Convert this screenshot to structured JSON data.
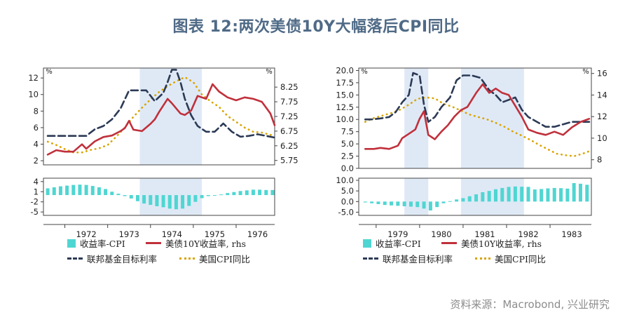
{
  "title": "图表 12:两次美债10Y大幅落后CPI同比",
  "source": "资料来源：Macrobond, 兴业研究",
  "colors": {
    "spread": "#4fd6d2",
    "yield": "#c0303b",
    "fedfunds": "#2c3a55",
    "cpi": "#d9a400",
    "shade": "#dfe9f6",
    "axis": "#444444"
  },
  "chart_data": [
    {
      "type": "line",
      "panel": "left",
      "x_ticks": [
        "1972",
        "1973",
        "1974",
        "1975",
        "1976"
      ],
      "x_range": [
        1971.5,
        1976.9
      ],
      "shaded_periods": [
        [
          1973.75,
          1975.2
        ]
      ],
      "left_axis": {
        "unit": "%",
        "ticks": [
          2,
          4,
          6,
          8,
          10,
          12
        ],
        "ylim": [
          1.5,
          13.2
        ]
      },
      "right_axis": {
        "unit": "%",
        "ticks": [
          "5.75",
          "6.25",
          "6.75",
          "7.25",
          "7.75",
          "8.25"
        ],
        "ylim": [
          5.6,
          8.9
        ]
      },
      "bottom_axis": {
        "ticks": [
          "4",
          "1",
          "-2",
          "-5"
        ],
        "ylim": [
          -6,
          5
        ]
      },
      "series": [
        {
          "name": "联邦基金目标利率",
          "axis": "left",
          "style": "dashed",
          "x": [
            1971.6,
            1971.9,
            1972.1,
            1972.3,
            1972.5,
            1972.7,
            1972.9,
            1973.1,
            1973.3,
            1973.5,
            1973.7,
            1973.9,
            1974.1,
            1974.3,
            1974.4,
            1974.5,
            1974.6,
            1974.7,
            1974.8,
            1974.95,
            1975.1,
            1975.3,
            1975.5,
            1975.7,
            1975.9,
            1976.1,
            1976.3,
            1976.5,
            1976.7,
            1976.9
          ],
          "y": [
            5.0,
            5.0,
            5.0,
            5.0,
            5.0,
            5.8,
            6.2,
            7.0,
            8.3,
            10.5,
            10.5,
            10.5,
            9.2,
            10.2,
            11.5,
            13.0,
            13.0,
            11.5,
            9.5,
            7.5,
            6.2,
            5.5,
            5.5,
            6.5,
            5.5,
            4.9,
            5.0,
            5.2,
            5.0,
            4.8
          ]
        },
        {
          "name": "美债10Y收益率, rhs",
          "axis": "right",
          "x": [
            1971.6,
            1971.8,
            1972.0,
            1972.2,
            1972.4,
            1972.5,
            1972.7,
            1972.9,
            1973.1,
            1973.3,
            1973.4,
            1973.5,
            1973.6,
            1973.8,
            1974.0,
            1974.1,
            1974.2,
            1974.4,
            1974.5,
            1974.7,
            1974.8,
            1974.95,
            1975.1,
            1975.3,
            1975.45,
            1975.6,
            1975.8,
            1976.0,
            1976.2,
            1976.4,
            1976.6,
            1976.8,
            1976.9
          ],
          "y": [
            5.95,
            6.1,
            6.05,
            6.05,
            6.3,
            6.15,
            6.4,
            6.55,
            6.6,
            6.75,
            6.85,
            7.1,
            6.8,
            6.75,
            7.0,
            7.15,
            7.4,
            7.85,
            7.7,
            7.35,
            7.3,
            7.45,
            7.95,
            7.85,
            8.35,
            8.1,
            7.9,
            7.8,
            7.9,
            7.85,
            7.75,
            7.35,
            6.95
          ]
        },
        {
          "name": "美国CPI同比",
          "axis": "left",
          "style": "dotted",
          "x": [
            1971.6,
            1971.8,
            1972.0,
            1972.2,
            1972.4,
            1972.6,
            1972.8,
            1973.0,
            1973.2,
            1973.4,
            1973.6,
            1973.8,
            1974.0,
            1974.2,
            1974.4,
            1974.6,
            1974.8,
            1975.0,
            1975.2,
            1975.4,
            1975.6,
            1975.8,
            1976.0,
            1976.2,
            1976.4,
            1976.6,
            1976.9
          ],
          "y": [
            4.3,
            3.9,
            3.4,
            3.0,
            3.0,
            3.3,
            3.5,
            3.9,
            4.9,
            6.0,
            7.3,
            8.4,
            9.4,
            10.3,
            11.0,
            11.6,
            12.1,
            11.5,
            10.0,
            9.2,
            8.5,
            7.4,
            6.7,
            6.0,
            5.5,
            5.4,
            5.0
          ]
        },
        {
          "name": "收益率-CPI",
          "axis": "bottom",
          "type": "bar",
          "x": [
            1971.6,
            1971.75,
            1971.9,
            1972.05,
            1972.2,
            1972.35,
            1972.5,
            1972.65,
            1972.8,
            1972.95,
            1973.1,
            1973.25,
            1973.4,
            1973.55,
            1973.7,
            1973.85,
            1974.0,
            1974.15,
            1974.3,
            1974.45,
            1974.6,
            1974.75,
            1974.9,
            1975.05,
            1975.2,
            1975.35,
            1975.5,
            1975.65,
            1975.8,
            1975.95,
            1976.1,
            1976.25,
            1976.4,
            1976.55,
            1976.7,
            1976.85
          ],
          "y": [
            2.0,
            2.3,
            2.6,
            2.8,
            3.0,
            3.1,
            3.0,
            2.7,
            2.3,
            1.8,
            1.0,
            0.4,
            -0.3,
            -1.0,
            -1.8,
            -2.5,
            -2.9,
            -3.3,
            -3.6,
            -4.0,
            -4.2,
            -4.0,
            -3.2,
            -2.0,
            -0.9,
            -0.3,
            0.0,
            0.2,
            0.6,
            0.9,
            1.2,
            1.4,
            1.6,
            1.6,
            1.5,
            1.5
          ]
        }
      ]
    },
    {
      "type": "line",
      "panel": "right",
      "x_ticks": [
        "1979",
        "1980",
        "1981",
        "1982",
        "1983"
      ],
      "x_range": [
        1978.6,
        1983.95
      ],
      "shaded_periods": [
        [
          1979.65,
          1980.2
        ],
        [
          1980.95,
          1982.4
        ]
      ],
      "left_axis": {
        "unit": "%",
        "ticks": [
          "0.0",
          "2.5",
          "5.0",
          "7.5",
          "10.0",
          "12.5",
          "15.0",
          "17.5",
          "20.0"
        ],
        "ylim": [
          0,
          20.5
        ]
      },
      "right_axis": {
        "unit": "%",
        "ticks": [
          8,
          10,
          12,
          14,
          16
        ],
        "ylim": [
          7.2,
          16.5
        ]
      },
      "bottom_axis": {
        "ticks": [
          "10.0",
          "5.0",
          "0.0",
          "-5.0"
        ],
        "ylim": [
          -6.5,
          11
        ]
      },
      "series": [
        {
          "name": "联邦基金目标利率",
          "axis": "left",
          "style": "dashed",
          "x": [
            1978.75,
            1978.9,
            1979.1,
            1979.3,
            1979.45,
            1979.6,
            1979.75,
            1979.85,
            1980.0,
            1980.1,
            1980.2,
            1980.35,
            1980.5,
            1980.7,
            1980.85,
            1981.0,
            1981.2,
            1981.4,
            1981.6,
            1981.75,
            1981.9,
            1982.05,
            1982.2,
            1982.35,
            1982.5,
            1982.7,
            1982.9,
            1983.1,
            1983.3,
            1983.5,
            1983.7,
            1983.9
          ],
          "y": [
            10.0,
            10.0,
            10.2,
            10.5,
            11.5,
            13.5,
            15.0,
            19.5,
            19.0,
            13.0,
            9.5,
            10.5,
            12.5,
            14.5,
            18.0,
            19.0,
            19.0,
            18.5,
            16.0,
            15.0,
            13.5,
            14.0,
            14.5,
            12.0,
            10.5,
            9.5,
            8.5,
            8.5,
            9.0,
            9.5,
            9.5,
            9.5
          ]
        },
        {
          "name": "美债10Y收益率, rhs",
          "axis": "right",
          "x": [
            1978.75,
            1978.95,
            1979.1,
            1979.3,
            1979.5,
            1979.6,
            1979.75,
            1979.9,
            1980.0,
            1980.1,
            1980.2,
            1980.35,
            1980.5,
            1980.65,
            1980.8,
            1980.95,
            1981.1,
            1981.3,
            1981.45,
            1981.6,
            1981.75,
            1981.9,
            1982.05,
            1982.2,
            1982.35,
            1982.5,
            1982.7,
            1982.9,
            1983.1,
            1983.3,
            1983.5,
            1983.7,
            1983.9
          ],
          "y": [
            9.0,
            9.0,
            9.1,
            9.0,
            9.3,
            10.0,
            10.4,
            10.8,
            11.8,
            12.5,
            10.3,
            9.9,
            10.6,
            11.2,
            12.0,
            12.6,
            12.9,
            14.2,
            15.0,
            14.2,
            14.6,
            14.2,
            14.0,
            13.0,
            12.0,
            10.8,
            10.5,
            10.3,
            10.6,
            10.3,
            11.0,
            11.5,
            11.8
          ]
        },
        {
          "name": "美国CPI同比",
          "axis": "left",
          "style": "dotted",
          "x": [
            1978.75,
            1978.95,
            1979.15,
            1979.35,
            1979.55,
            1979.75,
            1979.95,
            1980.15,
            1980.35,
            1980.55,
            1980.75,
            1980.95,
            1981.15,
            1981.35,
            1981.55,
            1981.75,
            1981.95,
            1982.15,
            1982.35,
            1982.55,
            1982.75,
            1982.95,
            1983.15,
            1983.35,
            1983.55,
            1983.75,
            1983.9
          ],
          "y": [
            9.5,
            10.3,
            10.8,
            11.3,
            12.0,
            13.0,
            14.2,
            14.5,
            14.3,
            13.2,
            12.6,
            11.8,
            11.0,
            10.5,
            10.0,
            9.3,
            8.5,
            7.5,
            6.7,
            5.8,
            4.8,
            3.9,
            3.0,
            2.7,
            2.5,
            3.0,
            3.5
          ]
        },
        {
          "name": "收益率-CPI",
          "axis": "bottom",
          "type": "bar",
          "x": [
            1978.75,
            1978.9,
            1979.05,
            1979.2,
            1979.35,
            1979.5,
            1979.65,
            1979.8,
            1979.95,
            1980.1,
            1980.25,
            1980.4,
            1980.55,
            1980.7,
            1980.85,
            1981.0,
            1981.15,
            1981.3,
            1981.45,
            1981.6,
            1981.75,
            1981.9,
            1982.05,
            1982.2,
            1982.35,
            1982.5,
            1982.65,
            1982.8,
            1982.95,
            1983.1,
            1983.25,
            1983.4,
            1983.55,
            1983.7,
            1983.85
          ],
          "y": [
            -0.4,
            -0.8,
            -1.2,
            -1.6,
            -1.8,
            -2.0,
            -2.2,
            -2.4,
            -2.6,
            -3.3,
            -4.2,
            -2.6,
            -0.8,
            0.2,
            1.0,
            1.6,
            2.5,
            3.4,
            4.4,
            5.0,
            5.8,
            6.4,
            6.9,
            7.1,
            7.0,
            6.9,
            5.7,
            5.9,
            6.2,
            6.4,
            6.3,
            6.1,
            8.7,
            8.4,
            7.9
          ]
        }
      ]
    }
  ]
}
